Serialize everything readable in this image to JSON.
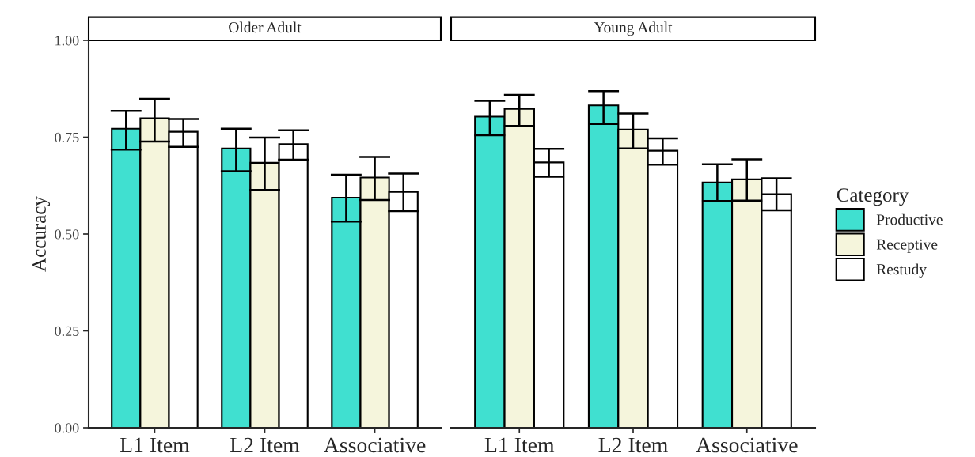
{
  "chart_data": [
    {
      "type": "bar",
      "title": "Older Adult",
      "ylabel": "Accuracy",
      "categories": [
        "L1 Item",
        "L2 Item",
        "Associative"
      ],
      "ylim": [
        0,
        1.0
      ],
      "yticks": [
        {
          "value": 0,
          "label": "0.00"
        },
        {
          "value": 0.25,
          "label": "0.25"
        },
        {
          "value": 0.5,
          "label": "0.50"
        },
        {
          "value": 0.75,
          "label": "0.75"
        },
        {
          "value": 1.0,
          "label": "1.00"
        }
      ],
      "grid": false,
      "series": [
        {
          "color": "#40e0d0",
          "values": [
            0.772,
            0.721,
            0.594
          ],
          "errors": [
            [
              0.718,
              0.818
            ],
            [
              0.662,
              0.772
            ],
            [
              0.532,
              0.653
            ]
          ]
        },
        {
          "color": "#f5f5dc",
          "values": [
            0.799,
            0.684,
            0.646
          ],
          "errors": [
            [
              0.739,
              0.849
            ],
            [
              0.614,
              0.749
            ],
            [
              0.588,
              0.699
            ]
          ]
        },
        {
          "color": "#ffffff",
          "values": [
            0.764,
            0.732,
            0.609
          ],
          "errors": [
            [
              0.725,
              0.797
            ],
            [
              0.692,
              0.768
            ],
            [
              0.559,
              0.656
            ]
          ]
        }
      ]
    },
    {
      "type": "bar",
      "title": "Young Adult",
      "categories": [
        "L1 Item",
        "L2 Item",
        "Associative"
      ],
      "ylim": [
        0,
        1.0
      ],
      "tick_labels": "x",
      "grid": false,
      "legend": "right",
      "legend_title": "Category",
      "series": [
        {
          "name": "Productive",
          "color": "#40e0d0",
          "values": [
            0.803,
            0.832,
            0.633
          ],
          "errors": [
            [
              0.755,
              0.844
            ],
            [
              0.784,
              0.869
            ],
            [
              0.585,
              0.68
            ]
          ]
        },
        {
          "name": "Receptive",
          "color": "#f5f5dc",
          "values": [
            0.823,
            0.77,
            0.641
          ],
          "errors": [
            [
              0.779,
              0.859
            ],
            [
              0.721,
              0.811
            ],
            [
              0.586,
              0.693
            ]
          ]
        },
        {
          "name": "Restudy",
          "color": "#ffffff",
          "values": [
            0.685,
            0.715,
            0.603
          ],
          "errors": [
            [
              0.648,
              0.72
            ],
            [
              0.679,
              0.747
            ],
            [
              0.561,
              0.644
            ]
          ]
        }
      ]
    }
  ]
}
